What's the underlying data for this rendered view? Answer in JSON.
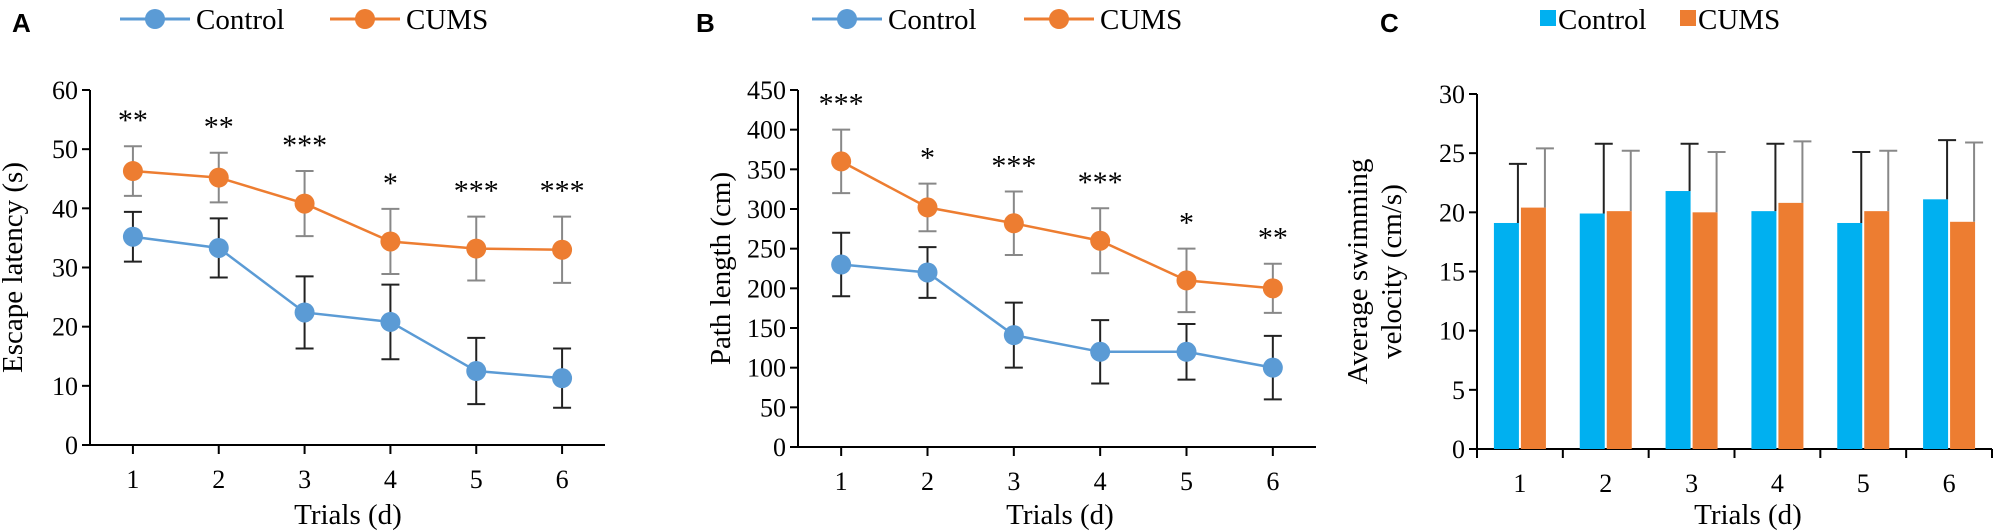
{
  "colors": {
    "control_line": "#5b9bd5",
    "cums_line": "#ed7d31",
    "control_bar": "#00b0f0",
    "cums_bar": "#ed7d31"
  },
  "chart_data": [
    {
      "panel": "A",
      "type": "line",
      "xlabel": "Trials (d)",
      "ylabel": "Escape latency (s)",
      "x": [
        1,
        2,
        3,
        4,
        5,
        6
      ],
      "ylim": [
        0,
        60
      ],
      "yticks": [
        0,
        10,
        20,
        30,
        40,
        50,
        60
      ],
      "legend": "top",
      "series": [
        {
          "name": "Control",
          "color": "#5b9bd5",
          "values": [
            35.2,
            33.3,
            22.4,
            20.8,
            12.5,
            11.3
          ],
          "err": [
            4.2,
            5.0,
            6.1,
            6.3,
            5.6,
            5.0
          ]
        },
        {
          "name": "CUMS",
          "color": "#ed7d31",
          "values": [
            46.3,
            45.2,
            40.8,
            34.4,
            33.2,
            33.0
          ],
          "err": [
            4.2,
            4.2,
            5.5,
            5.5,
            5.4,
            5.6
          ]
        }
      ],
      "significance": [
        "**",
        "**",
        "***",
        "*",
        "***",
        "***"
      ]
    },
    {
      "panel": "B",
      "type": "line",
      "xlabel": "Trials (d)",
      "ylabel": "Path length (cm)",
      "x": [
        1,
        2,
        3,
        4,
        5,
        6
      ],
      "ylim": [
        0,
        450
      ],
      "yticks": [
        0,
        50,
        100,
        150,
        200,
        250,
        300,
        350,
        400,
        450
      ],
      "legend": "top",
      "series": [
        {
          "name": "Control",
          "color": "#5b9bd5",
          "values": [
            230,
            220,
            141,
            120,
            120,
            100
          ],
          "err": [
            40,
            32,
            41,
            40,
            35,
            40
          ]
        },
        {
          "name": "CUMS",
          "color": "#ed7d31",
          "values": [
            360,
            302,
            282,
            260,
            210,
            200
          ],
          "err": [
            40,
            30,
            40,
            41,
            40,
            31
          ]
        }
      ],
      "significance": [
        "***",
        "*",
        "***",
        "***",
        "*",
        "**"
      ]
    },
    {
      "panel": "C",
      "type": "bar",
      "xlabel": "Trials (d)",
      "ylabel_lines": [
        "Average swimming",
        "velocity (cm/s)"
      ],
      "categories": [
        "1",
        "2",
        "3",
        "4",
        "5",
        "6"
      ],
      "ylim": [
        0,
        30
      ],
      "yticks": [
        0,
        5,
        10,
        15,
        20,
        25,
        30
      ],
      "legend": "top",
      "series": [
        {
          "name": "Control",
          "color": "#00b0f0",
          "values": [
            19.1,
            19.9,
            21.8,
            20.1,
            19.1,
            21.1
          ],
          "err": [
            5.0,
            5.9,
            4.0,
            5.7,
            6.0,
            5.0
          ]
        },
        {
          "name": "CUMS",
          "color": "#ed7d31",
          "values": [
            20.4,
            20.1,
            20.0,
            20.8,
            20.1,
            19.2
          ],
          "err": [
            5.0,
            5.1,
            5.1,
            5.2,
            5.1,
            6.7
          ]
        }
      ]
    }
  ]
}
